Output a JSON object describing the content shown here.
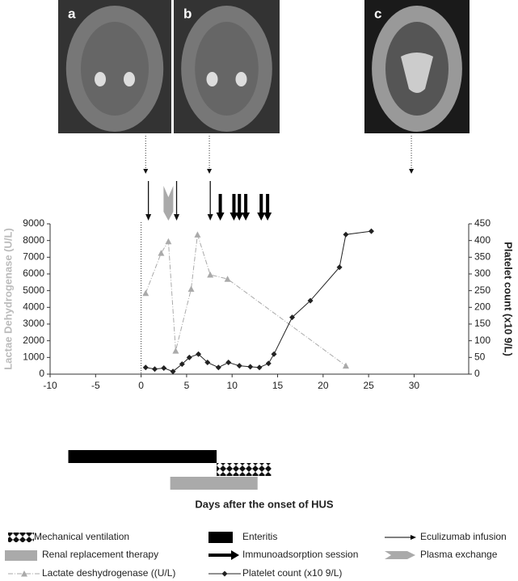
{
  "chart_data": {
    "type": "line",
    "xlabel": "Days after the onset of HUS",
    "ylabel": "Lactae Dehydrogenase (U/L)",
    "y2label": "Platelet count (x10 9/L)",
    "xlim": [
      -10,
      36
    ],
    "xticks": [
      -10,
      -5,
      0,
      5,
      10,
      15,
      20,
      25,
      30
    ],
    "ylim": [
      0,
      9000
    ],
    "yticks": [
      0,
      1000,
      2000,
      3000,
      4000,
      5000,
      6000,
      7000,
      8000,
      9000
    ],
    "y2lim": [
      0,
      450
    ],
    "y2ticks": [
      0,
      50,
      100,
      150,
      200,
      250,
      300,
      350,
      400,
      450
    ],
    "series": [
      {
        "name": "Lactate deshydrogenase ((U/L)",
        "color": "#aaaaaa",
        "x": [
          0.5,
          2.2,
          3.0,
          3.8,
          5.5,
          6.2,
          7.6,
          9.5,
          22.5
        ],
        "values": [
          4850,
          7250,
          7950,
          1400,
          5100,
          8350,
          5950,
          5700,
          500
        ]
      },
      {
        "name": "Platelet count (x10 9/L)",
        "color": "#222222",
        "axis": "y2",
        "x": [
          0.5,
          1.5,
          2.5,
          3.5,
          4.5,
          5.3,
          6.3,
          7.3,
          8.5,
          9.6,
          10.8,
          12.0,
          13.0,
          14.0,
          14.6,
          16.6,
          18.6,
          21.8,
          22.5,
          25.3
        ],
        "values": [
          20,
          15,
          18,
          8,
          30,
          50,
          60,
          35,
          20,
          35,
          25,
          22,
          20,
          32,
          60,
          170,
          220,
          320,
          418,
          428
        ]
      }
    ],
    "periods": [
      {
        "name": "Enteritis",
        "start": -8,
        "end": 8.3,
        "color": "#000000"
      },
      {
        "name": "Mechanical ventilation",
        "start": 8.3,
        "end": 14.3,
        "color": "#111111"
      },
      {
        "name": "Renal replacement therapy",
        "start": 3.2,
        "end": 12.8,
        "color": "#aaaaaa"
      }
    ],
    "events": [
      {
        "name": "Eculizumab infusion",
        "days": [
          0.8,
          3.9,
          7.6
        ]
      },
      {
        "name": "Immunoadsorption session",
        "days": [
          8.7,
          10.2,
          10.8,
          11.5,
          13.2,
          13.9
        ]
      },
      {
        "name": "Plasma exchange",
        "days": [
          3.0
        ]
      }
    ],
    "images": [
      {
        "label": "a",
        "day": 0.5
      },
      {
        "label": "b",
        "day": 7.5
      },
      {
        "label": "c",
        "day": 29.7
      }
    ]
  }
}
